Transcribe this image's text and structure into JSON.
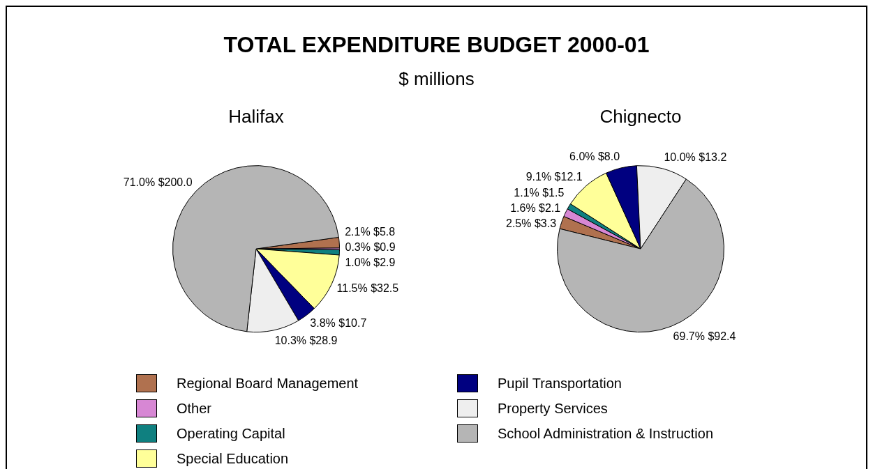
{
  "chart_data": {
    "type": "pie",
    "title": "TOTAL EXPENDITURE BUDGET 2000-01",
    "subtitle": "$ millions",
    "legend": "bottom",
    "categories": [
      "Regional Board Management",
      "Other",
      "Operating Capital",
      "Special Education",
      "Pupil Transportation",
      "Property Services",
      "School Administration & Instruction"
    ],
    "colors": [
      "#b0714f",
      "#d787d4",
      "#0f8080",
      "#ffff99",
      "#000080",
      "#eeeeee",
      "#b5b5b5"
    ],
    "series": [
      {
        "name": "Halifax",
        "values": [
          5.8,
          0.9,
          2.9,
          32.5,
          10.7,
          28.9,
          200.0
        ],
        "value_labels": [
          "2.1% $5.8",
          "0.3% $0.9",
          "1.0% $2.9",
          "11.5% $32.5",
          "3.8% $10.7",
          "10.3% $28.9",
          "71.0% $200.0"
        ]
      },
      {
        "name": "Chignecto",
        "values": [
          3.3,
          2.1,
          1.5,
          12.1,
          8.0,
          13.2,
          92.4
        ],
        "value_labels": [
          "2.5% $3.3",
          "1.6% $2.1",
          "1.1% $1.5",
          "9.1% $12.1",
          "6.0% $8.0",
          "10.0% $13.2",
          "69.7% $92.4"
        ]
      }
    ]
  }
}
